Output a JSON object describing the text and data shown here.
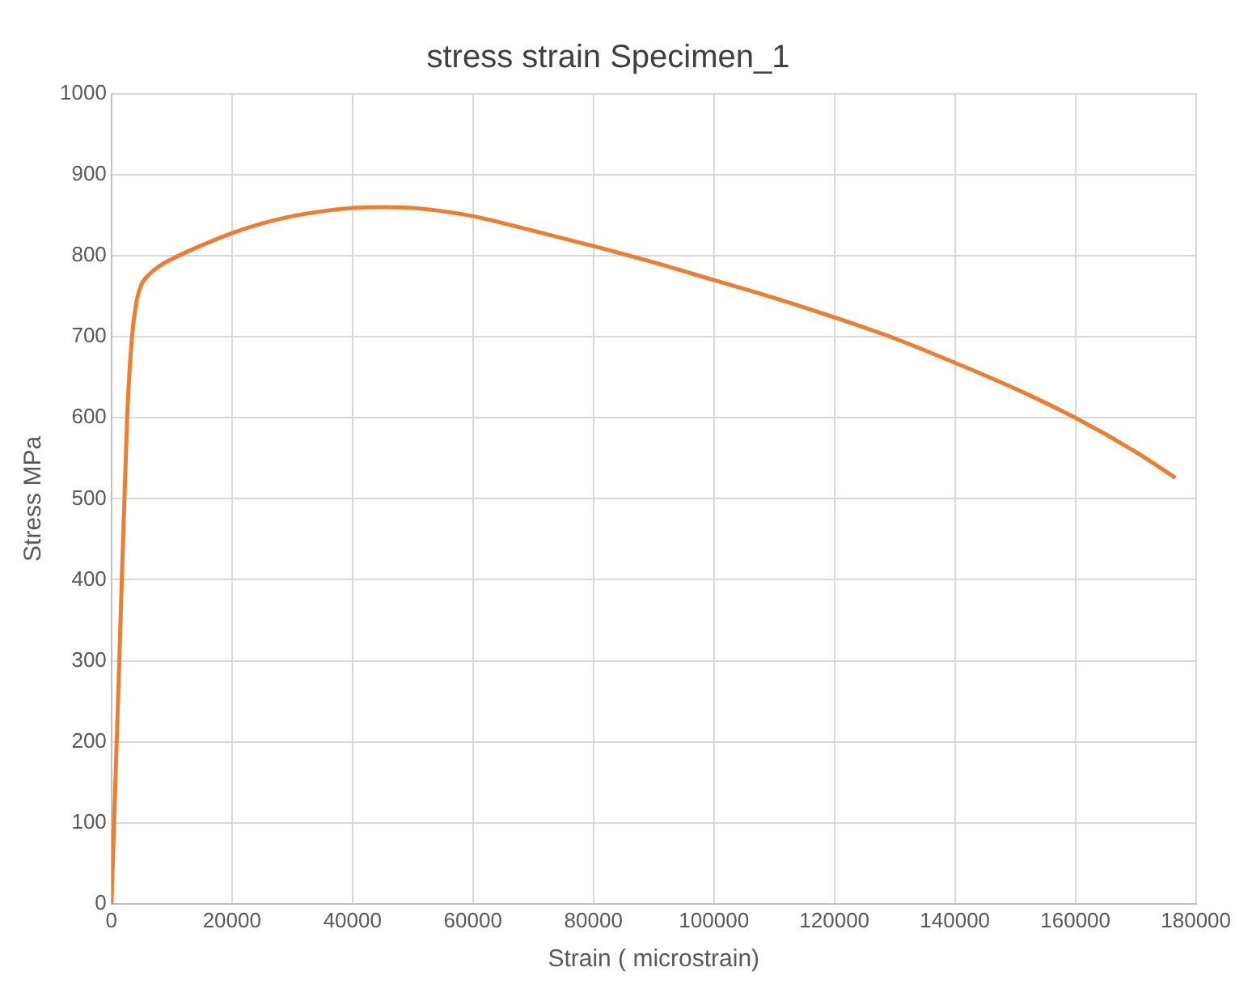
{
  "chart_data": {
    "type": "line",
    "title": "stress strain Specimen_1",
    "xlabel": "Strain ( microstrain)",
    "ylabel": "Stress MPa",
    "x": [
      0,
      1300,
      2600,
      3400,
      4200,
      5000,
      6000,
      7000,
      8500,
      10000,
      15000,
      20000,
      25000,
      30000,
      35000,
      40000,
      45000,
      50000,
      55000,
      60000,
      70000,
      80000,
      90000,
      100000,
      110000,
      120000,
      130000,
      140000,
      150000,
      160000,
      170000,
      176600
    ],
    "series": [
      {
        "color": "#ed7d31",
        "values": [
          0,
          300,
          600,
          700,
          745,
          765,
          775,
          782,
          790,
          796,
          813,
          828,
          840,
          849,
          855,
          859,
          860,
          859,
          855,
          849,
          831,
          812,
          792,
          770,
          748,
          724,
          698,
          668,
          636,
          600,
          558,
          526
        ]
      }
    ],
    "xlim": [
      0,
      180000
    ],
    "xticks": [
      0,
      20000,
      40000,
      60000,
      80000,
      100000,
      120000,
      140000,
      160000,
      180000
    ],
    "ylim": [
      0,
      1000
    ],
    "yticks": [
      0,
      100,
      200,
      300,
      400,
      500,
      600,
      700,
      800,
      900,
      1000
    ],
    "grid": true,
    "legend": false,
    "marker": "none",
    "line_style": "solid"
  }
}
